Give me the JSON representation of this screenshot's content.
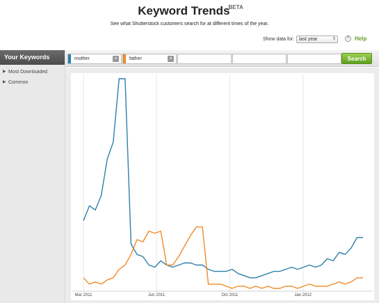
{
  "header": {
    "title": "Keyword Trends",
    "badge": "BETA",
    "subtitle": "See what Shutterstock customers search for at different times of the year."
  },
  "controls": {
    "show_data_label": "Show data for:",
    "period_value": "last year",
    "help_icon": "question-icon",
    "help_label": "Help"
  },
  "sidebar": {
    "title": "Your Keywords",
    "items": [
      {
        "label": "Most Downloaded",
        "icon": "triangle-right-icon"
      },
      {
        "label": "Common",
        "icon": "triangle-right-icon"
      }
    ]
  },
  "keywords": {
    "fields": [
      {
        "value": "mother",
        "color": "#2e7fa8"
      },
      {
        "value": "father",
        "color": "#f08a24"
      },
      {
        "value": ""
      },
      {
        "value": ""
      },
      {
        "value": ""
      }
    ],
    "search_label": "Search"
  },
  "chart_data": {
    "type": "line",
    "x_tick_labels": [
      "Mar 2011",
      "Jun 2011",
      "Oct 2011",
      "Jan 2012"
    ],
    "grid": "vertical",
    "ylim": [
      0,
      100
    ],
    "series": [
      {
        "name": "mother",
        "color": "#2e7fa8",
        "values": [
          33,
          40,
          38,
          45,
          62,
          70,
          100,
          100,
          22,
          17,
          16,
          12,
          11,
          14,
          12,
          11,
          12,
          13,
          13,
          12,
          12,
          10,
          9,
          9,
          9,
          10,
          8,
          7,
          6,
          6,
          7,
          8,
          9,
          9,
          10,
          11,
          10,
          11,
          12,
          11,
          12,
          15,
          14,
          18,
          17,
          20,
          25,
          25
        ]
      },
      {
        "name": "father",
        "color": "#f08a24",
        "values": [
          6,
          3,
          4,
          3,
          5,
          6,
          10,
          12,
          17,
          24,
          23,
          28,
          27,
          28,
          12,
          12,
          16,
          21,
          26,
          30,
          30,
          3,
          3,
          3,
          2,
          1,
          2,
          2,
          1,
          2,
          1,
          2,
          1,
          1,
          2,
          2,
          1,
          2,
          3,
          2,
          2,
          2,
          3,
          4,
          3,
          4,
          6,
          6
        ]
      }
    ]
  }
}
